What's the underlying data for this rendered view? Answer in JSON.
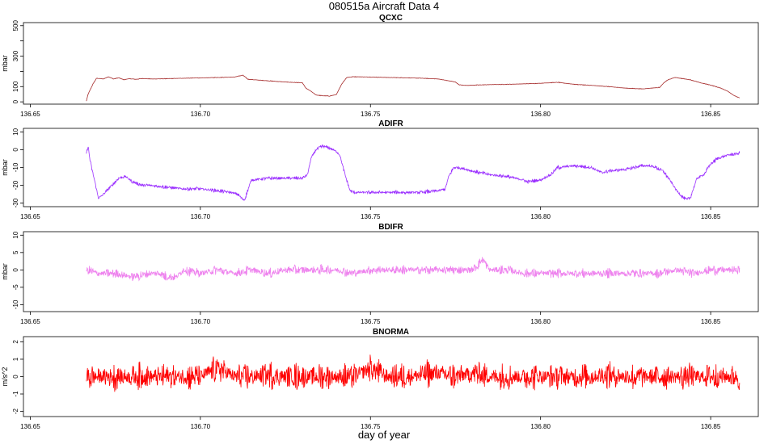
{
  "figure": {
    "title": "080515a   Aircraft Data 4",
    "xlabel": "day of year"
  },
  "chart_data": [
    {
      "type": "line",
      "title": "QCXC",
      "ylabel": "mbar",
      "color": "#a52a2a",
      "xlim": [
        136.648,
        136.864
      ],
      "ylim": [
        -15,
        520
      ],
      "xticks": [
        136.65,
        136.7,
        136.75,
        136.8,
        136.85
      ],
      "xtick_labels": [
        "136.65",
        "136.70",
        "136.75",
        "136.80",
        "136.85"
      ],
      "yticks": [
        0,
        100,
        200,
        300,
        400,
        500
      ],
      "ytick_labels": [
        "0",
        "100",
        "",
        "300",
        "",
        "500"
      ],
      "noise": 2,
      "series": [
        {
          "x": [
            136.6665,
            136.667,
            136.6685,
            136.6695,
            136.6715,
            136.673,
            136.6745,
            136.676,
            136.6775,
            136.679,
            136.681,
            136.683,
            136.686,
            136.69,
            136.695,
            136.7,
            136.705,
            136.71,
            136.7115,
            136.7125,
            136.714,
            136.72,
            136.725,
            136.73,
            136.731,
            136.7325,
            136.734,
            136.736,
            136.738,
            136.74,
            136.7415,
            136.743,
            136.745,
            136.75,
            136.755,
            136.76,
            136.765,
            136.77,
            136.775,
            136.776,
            136.778,
            136.785,
            136.79,
            136.795,
            136.8,
            136.805,
            136.81,
            136.815,
            136.82,
            136.825,
            136.83,
            136.835,
            136.8365,
            136.8375,
            136.8395,
            136.841,
            136.844,
            136.847,
            136.85,
            136.853,
            136.855,
            136.857,
            136.8585
          ],
          "y": [
            5,
            50,
            120,
            155,
            150,
            165,
            150,
            158,
            145,
            152,
            148,
            153,
            150,
            152,
            155,
            157,
            160,
            163,
            170,
            175,
            148,
            138,
            130,
            125,
            90,
            70,
            45,
            40,
            38,
            48,
            115,
            160,
            165,
            163,
            160,
            158,
            155,
            150,
            130,
            112,
            108,
            113,
            115,
            118,
            122,
            128,
            115,
            108,
            100,
            90,
            85,
            95,
            130,
            145,
            160,
            155,
            145,
            125,
            110,
            90,
            70,
            40,
            25
          ]
        }
      ]
    },
    {
      "type": "line",
      "title": "ADIFR",
      "ylabel": "mbar",
      "color": "#9b30ff",
      "xlim": [
        136.648,
        136.864
      ],
      "ylim": [
        -32,
        12
      ],
      "xticks": [
        136.65,
        136.7,
        136.75,
        136.8,
        136.85
      ],
      "xtick_labels": [
        "136.65",
        "136.70",
        "136.75",
        "136.80",
        "136.85"
      ],
      "yticks": [
        10,
        0,
        -10,
        -20,
        -30
      ],
      "ytick_labels": [
        "10",
        "0",
        "-10",
        "-20",
        "-30"
      ],
      "noise": 1.2,
      "series": [
        {
          "x": [
            136.6665,
            136.667,
            136.6675,
            136.668,
            136.669,
            136.67,
            136.671,
            136.6725,
            136.674,
            136.675,
            136.676,
            136.678,
            136.68,
            136.683,
            136.685,
            136.69,
            136.695,
            136.7,
            136.705,
            136.709,
            136.711,
            136.712,
            136.7125,
            136.713,
            136.715,
            136.72,
            136.725,
            136.73,
            136.7315,
            136.7325,
            136.734,
            136.736,
            136.738,
            136.74,
            136.741,
            136.7425,
            136.744,
            136.745,
            136.75,
            136.755,
            136.76,
            136.765,
            136.77,
            136.772,
            136.773,
            136.7745,
            136.776,
            136.78,
            136.785,
            136.79,
            136.795,
            136.796,
            136.8,
            136.803,
            136.805,
            136.81,
            136.815,
            136.818,
            136.82,
            136.825,
            136.83,
            136.832,
            136.834,
            136.836,
            136.838,
            136.84,
            136.842,
            136.843,
            136.844,
            136.846,
            136.848,
            136.85,
            136.852,
            136.855,
            136.8585
          ],
          "y": [
            -2,
            2,
            -5,
            -10,
            -18,
            -27,
            -26,
            -23,
            -20,
            -18,
            -16,
            -15,
            -18,
            -20,
            -20,
            -21,
            -22,
            -22,
            -23,
            -24,
            -25,
            -27,
            -28,
            -28,
            -17,
            -16,
            -16,
            -16,
            -14,
            -5,
            0,
            2,
            1,
            -1,
            -3,
            -14,
            -23,
            -24,
            -24,
            -24,
            -24,
            -24,
            -23,
            -22,
            -15,
            -10,
            -10,
            -12,
            -14,
            -15,
            -17,
            -18,
            -17,
            -14,
            -10,
            -9,
            -10,
            -13,
            -12,
            -11,
            -9,
            -9,
            -10,
            -12,
            -17,
            -23,
            -27,
            -28,
            -27,
            -16,
            -14,
            -8,
            -5,
            -3,
            -2
          ]
        }
      ]
    },
    {
      "type": "line",
      "title": "BDIFR",
      "ylabel": "mbar",
      "color": "#ee82ee",
      "xlim": [
        136.648,
        136.864
      ],
      "ylim": [
        -12,
        11
      ],
      "xticks": [
        136.65,
        136.7,
        136.75,
        136.8,
        136.85
      ],
      "xtick_labels": [
        "136.65",
        "136.70",
        "136.75",
        "136.80",
        "136.85"
      ],
      "yticks": [
        10,
        5,
        0,
        -5,
        -10
      ],
      "ytick_labels": [
        "10",
        "5",
        "0",
        "-5",
        "-10"
      ],
      "noise": 1.6,
      "series": [
        {
          "x": [
            136.6665,
            136.67,
            136.675,
            136.68,
            136.685,
            136.688,
            136.69,
            136.693,
            136.695,
            136.7,
            136.705,
            136.71,
            136.715,
            136.72,
            136.725,
            136.73,
            136.735,
            136.74,
            136.745,
            136.75,
            136.755,
            136.76,
            136.765,
            136.77,
            136.775,
            136.78,
            136.783,
            136.785,
            136.79,
            136.795,
            136.8,
            136.805,
            136.81,
            136.815,
            136.82,
            136.825,
            136.83,
            136.835,
            136.84,
            136.845,
            136.85,
            136.855,
            136.8585
          ],
          "y": [
            0,
            -1,
            -1,
            -2,
            -1,
            -1,
            -2,
            -2,
            0,
            -1,
            0,
            -1,
            0,
            -1,
            0,
            0,
            0,
            0,
            -1,
            0,
            0,
            0,
            0,
            0,
            0,
            0,
            3,
            0,
            0,
            -1,
            -1,
            -1,
            -1,
            -1,
            -1,
            -1,
            -1,
            -1,
            0,
            -1,
            0,
            0,
            0
          ]
        }
      ]
    },
    {
      "type": "line",
      "title": "BNORMA",
      "ylabel": "m/s^2",
      "color": "#ff0000",
      "xlim": [
        136.648,
        136.864
      ],
      "ylim": [
        -2.3,
        2.3
      ],
      "xticks": [
        136.65,
        136.7,
        136.75,
        136.8,
        136.85
      ],
      "xtick_labels": [
        "136.65",
        "136.70",
        "136.75",
        "136.80",
        "136.85"
      ],
      "yticks": [
        2,
        1,
        0,
        -1,
        -2
      ],
      "ytick_labels": [
        "2",
        "1",
        "0",
        "-1",
        "-2"
      ],
      "noise": 0.9,
      "series": [
        {
          "x": [
            136.6665,
            136.67,
            136.675,
            136.68,
            136.685,
            136.69,
            136.695,
            136.7,
            136.705,
            136.71,
            136.715,
            136.72,
            136.725,
            136.73,
            136.735,
            136.74,
            136.745,
            136.75,
            136.755,
            136.76,
            136.765,
            136.77,
            136.775,
            136.78,
            136.785,
            136.79,
            136.795,
            136.8,
            136.805,
            136.81,
            136.815,
            136.82,
            136.825,
            136.83,
            136.835,
            136.84,
            136.845,
            136.85,
            136.855,
            136.8585
          ],
          "y": [
            0,
            0,
            0,
            0,
            0,
            0,
            0,
            0,
            0.5,
            0,
            0,
            0.1,
            0,
            0,
            0,
            0,
            0,
            0.5,
            0,
            0,
            0.1,
            0.2,
            0,
            0.2,
            0,
            0,
            0,
            0,
            0,
            0,
            0,
            0.1,
            0,
            0,
            0,
            0,
            0,
            0,
            0,
            0
          ]
        }
      ]
    }
  ]
}
